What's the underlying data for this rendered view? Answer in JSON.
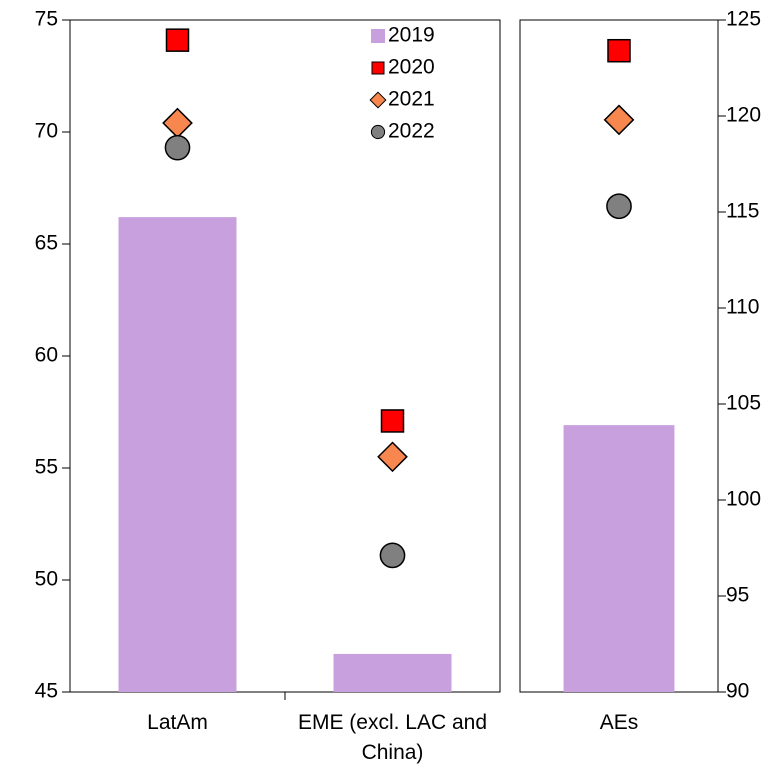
{
  "chart_data": {
    "type": "combo",
    "categories": [
      "LatAm",
      "EME (excl. LAC and China)",
      "AEs"
    ],
    "category_axis": [
      "y",
      "y",
      "y2"
    ],
    "series": [
      {
        "name": "2019",
        "marker": "bar",
        "color": "#c8a0de",
        "values": [
          66.2,
          46.7,
          103.9
        ]
      },
      {
        "name": "2020",
        "marker": "square",
        "color": "#ff0000",
        "values": [
          74.1,
          57.1,
          123.4
        ]
      },
      {
        "name": "2021",
        "marker": "diamond",
        "color": "#f7874f",
        "values": [
          70.4,
          55.5,
          119.8
        ]
      },
      {
        "name": "2022",
        "marker": "circle",
        "color": "#808080",
        "values": [
          69.3,
          51.1,
          115.3
        ]
      }
    ],
    "ylim": [
      45,
      75
    ],
    "yticks": [
      45,
      50,
      55,
      60,
      65,
      70,
      75
    ],
    "y2lim": [
      90,
      125
    ],
    "y2ticks": [
      90,
      95,
      100,
      105,
      110,
      115,
      120,
      125
    ],
    "legend": "top-right"
  }
}
